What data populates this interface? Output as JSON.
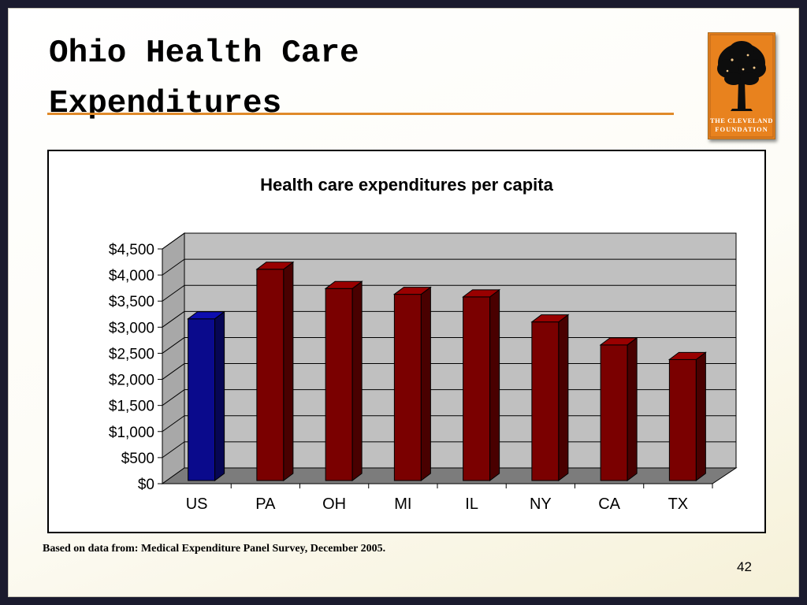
{
  "slide": {
    "title_line1": "Ohio Health Care",
    "title_line2": "Expenditures",
    "source_note": "Based on data from: Medical Expenditure Panel Survey, December 2005.",
    "page_number": "42",
    "logo": {
      "text_line1": "THE CLEVELAND",
      "text_line2": "FOUNDATION",
      "icon": "tree-icon",
      "bg_color": "#e8821e"
    }
  },
  "chart_data": {
    "type": "bar",
    "title": "Health care expenditures per capita",
    "categories": [
      "US",
      "PA",
      "OH",
      "MI",
      "IL",
      "NY",
      "CA",
      "TX"
    ],
    "values": [
      3100,
      4050,
      3680,
      3570,
      3520,
      3040,
      2600,
      2320
    ],
    "highlight_category": "US",
    "colors": {
      "default": "#7a0000",
      "highlight": "#0a0a8c"
    },
    "ylim": [
      0,
      4500
    ],
    "ytick_labels": [
      "$0",
      "$500",
      "$1,000",
      "$1,500",
      "$2,000",
      "$2,500",
      "$3,000",
      "$3,500",
      "$4,000",
      "$4,500"
    ],
    "grid": true,
    "legend": "none",
    "style": "3d"
  }
}
